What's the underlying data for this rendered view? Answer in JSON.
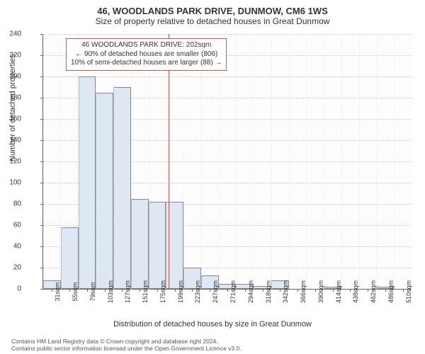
{
  "title_main": "46, WOODLANDS PARK DRIVE, DUNMOW, CM6 1WS",
  "title_sub": "Size of property relative to detached houses in Great Dunmow",
  "ylabel": "Number of detached properties",
  "xlabel": "Distribution of detached houses by size in Great Dunmow",
  "annotation": {
    "line1": "46 WOODLANDS PARK DRIVE: 202sqm",
    "line2": "← 90% of detached houses are smaller (806)",
    "line3": "10% of semi-detached houses are larger (88) →"
  },
  "footnote": {
    "line1": "Contains HM Land Registry data © Crown copyright and database right 2024.",
    "line2": "Contains public sector information licensed under the Open Government Licence v3.0."
  },
  "chart": {
    "type": "histogram",
    "ylim": [
      0,
      240
    ],
    "ytick_step": 20,
    "bar_fill": "#dde8f4",
    "bar_stroke": "#888888",
    "grid_color": "#cccccc",
    "background": "#fdfdfd",
    "ref_line_color": "#d9534f",
    "ref_line_x_index": 7.15,
    "x_labels": [
      "31sqm",
      "55sqm",
      "79sqm",
      "103sqm",
      "127sqm",
      "151sqm",
      "175sqm",
      "199sqm",
      "223sqm",
      "247sqm",
      "271sqm",
      "294sqm",
      "318sqm",
      "342sqm",
      "366sqm",
      "390sqm",
      "414sqm",
      "438sqm",
      "462sqm",
      "486sqm",
      "510sqm"
    ],
    "values": [
      8,
      58,
      200,
      185,
      190,
      85,
      82,
      82,
      20,
      13,
      5,
      5,
      3,
      8,
      0,
      0,
      2,
      0,
      0,
      2,
      0
    ],
    "title_fontsize": 13,
    "subtitle_fontsize": 12,
    "axis_label_fontsize": 11,
    "tick_fontsize": 10
  }
}
